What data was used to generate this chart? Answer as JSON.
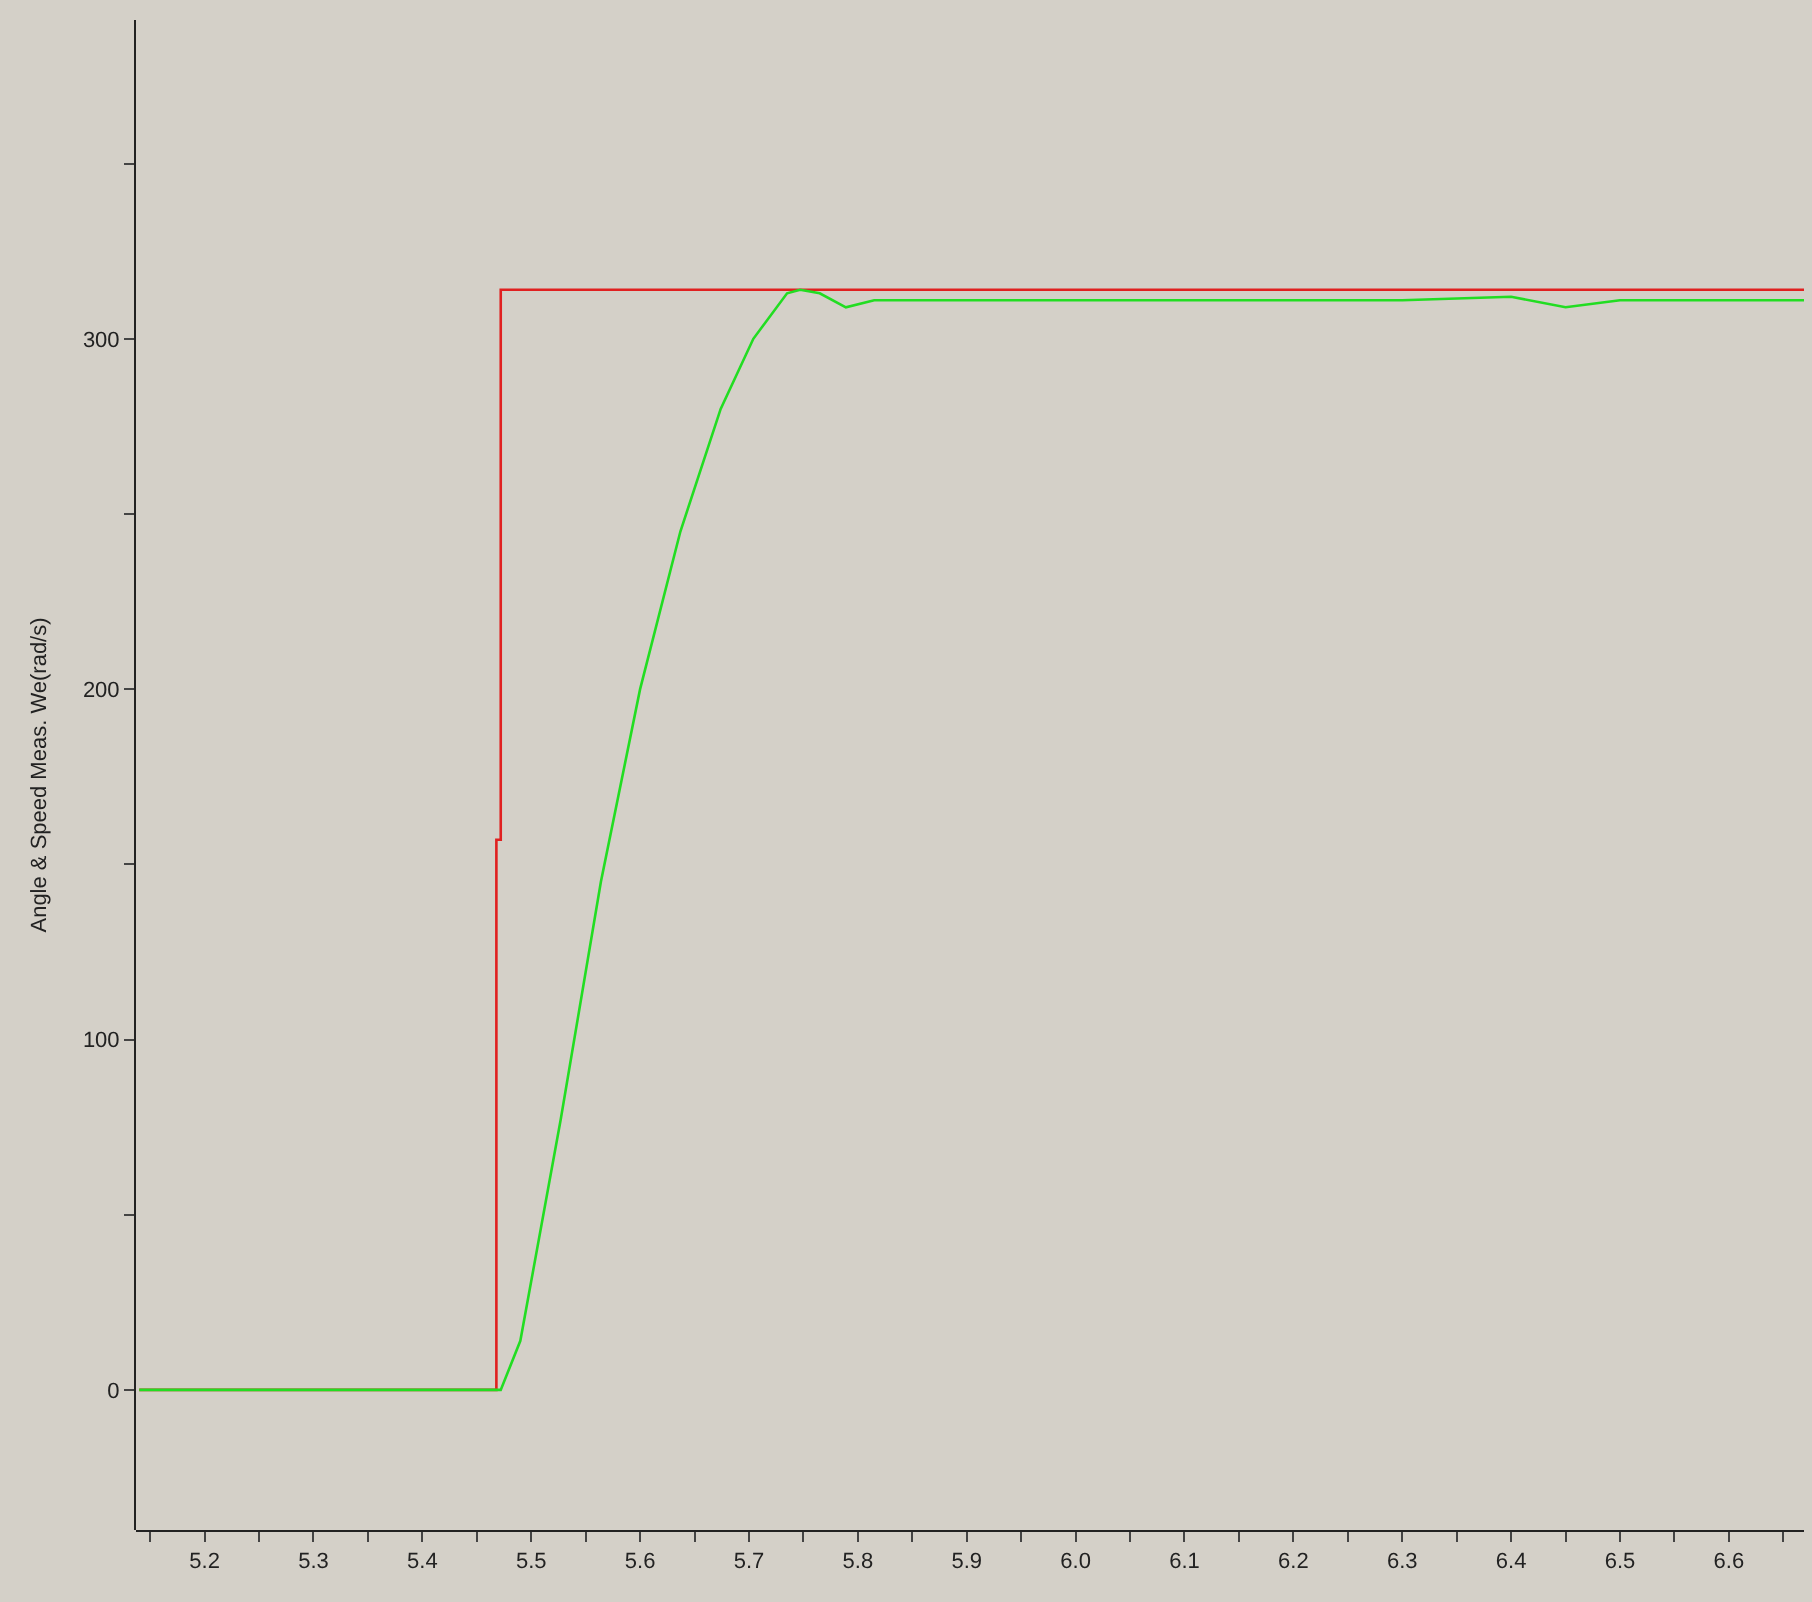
{
  "chart_data": {
    "type": "line",
    "ylabel": "Angle & Speed Meas. We(rad/s)",
    "xlim": [
      5.137,
      6.669
    ],
    "ylim": [
      -40,
      391
    ],
    "xticks": [
      {
        "value": 5.15,
        "label": null
      },
      5.2,
      {
        "value": 5.25,
        "label": null
      },
      5.3,
      {
        "value": 5.35,
        "label": null
      },
      5.4,
      {
        "value": 5.45,
        "label": null
      },
      5.5,
      {
        "value": 5.55,
        "label": null
      },
      5.6,
      {
        "value": 5.65,
        "label": null
      },
      5.7,
      {
        "value": 5.75,
        "label": null
      },
      5.8,
      {
        "value": 5.85,
        "label": null
      },
      5.9,
      {
        "value": 5.95,
        "label": null
      },
      {
        "value": 6.0,
        "label": "6.0"
      },
      {
        "value": 6.05,
        "label": null
      },
      6.1,
      {
        "value": 6.15,
        "label": null
      },
      6.2,
      {
        "value": 6.25,
        "label": null
      },
      6.3,
      {
        "value": 6.35,
        "label": null
      },
      6.4,
      {
        "value": 6.45,
        "label": null
      },
      6.5,
      {
        "value": 6.55,
        "label": null
      },
      6.6,
      {
        "value": 6.65,
        "label": null
      }
    ],
    "yticks": [
      0,
      {
        "value": 50,
        "label": null
      },
      100,
      {
        "value": 150,
        "label": null
      },
      200,
      {
        "value": 250,
        "label": null
      },
      300,
      {
        "value": 350,
        "label": null
      }
    ],
    "grid": false,
    "legend": false,
    "marker": "none",
    "line_style": "solid",
    "series": [
      {
        "color": "#e02020",
        "x": [
          5.14,
          5.468,
          5.468,
          5.472,
          5.472,
          6.669
        ],
        "values": [
          0,
          0,
          157,
          157,
          314,
          314
        ]
      },
      {
        "color": "#22dd22",
        "x": [
          5.14,
          5.3,
          5.472,
          5.49,
          5.527,
          5.564,
          5.6,
          5.637,
          5.674,
          5.704,
          5.735,
          5.747,
          5.765,
          5.789,
          5.815,
          5.9,
          6.0,
          6.1,
          6.2,
          6.3,
          6.4,
          6.45,
          6.5,
          6.6,
          6.669
        ],
        "values": [
          0,
          0,
          0,
          14,
          77,
          145,
          200,
          245,
          280,
          300,
          313,
          314,
          313,
          309,
          311,
          311,
          311,
          311,
          311,
          311,
          312,
          309,
          311,
          311,
          311
        ]
      }
    ]
  }
}
